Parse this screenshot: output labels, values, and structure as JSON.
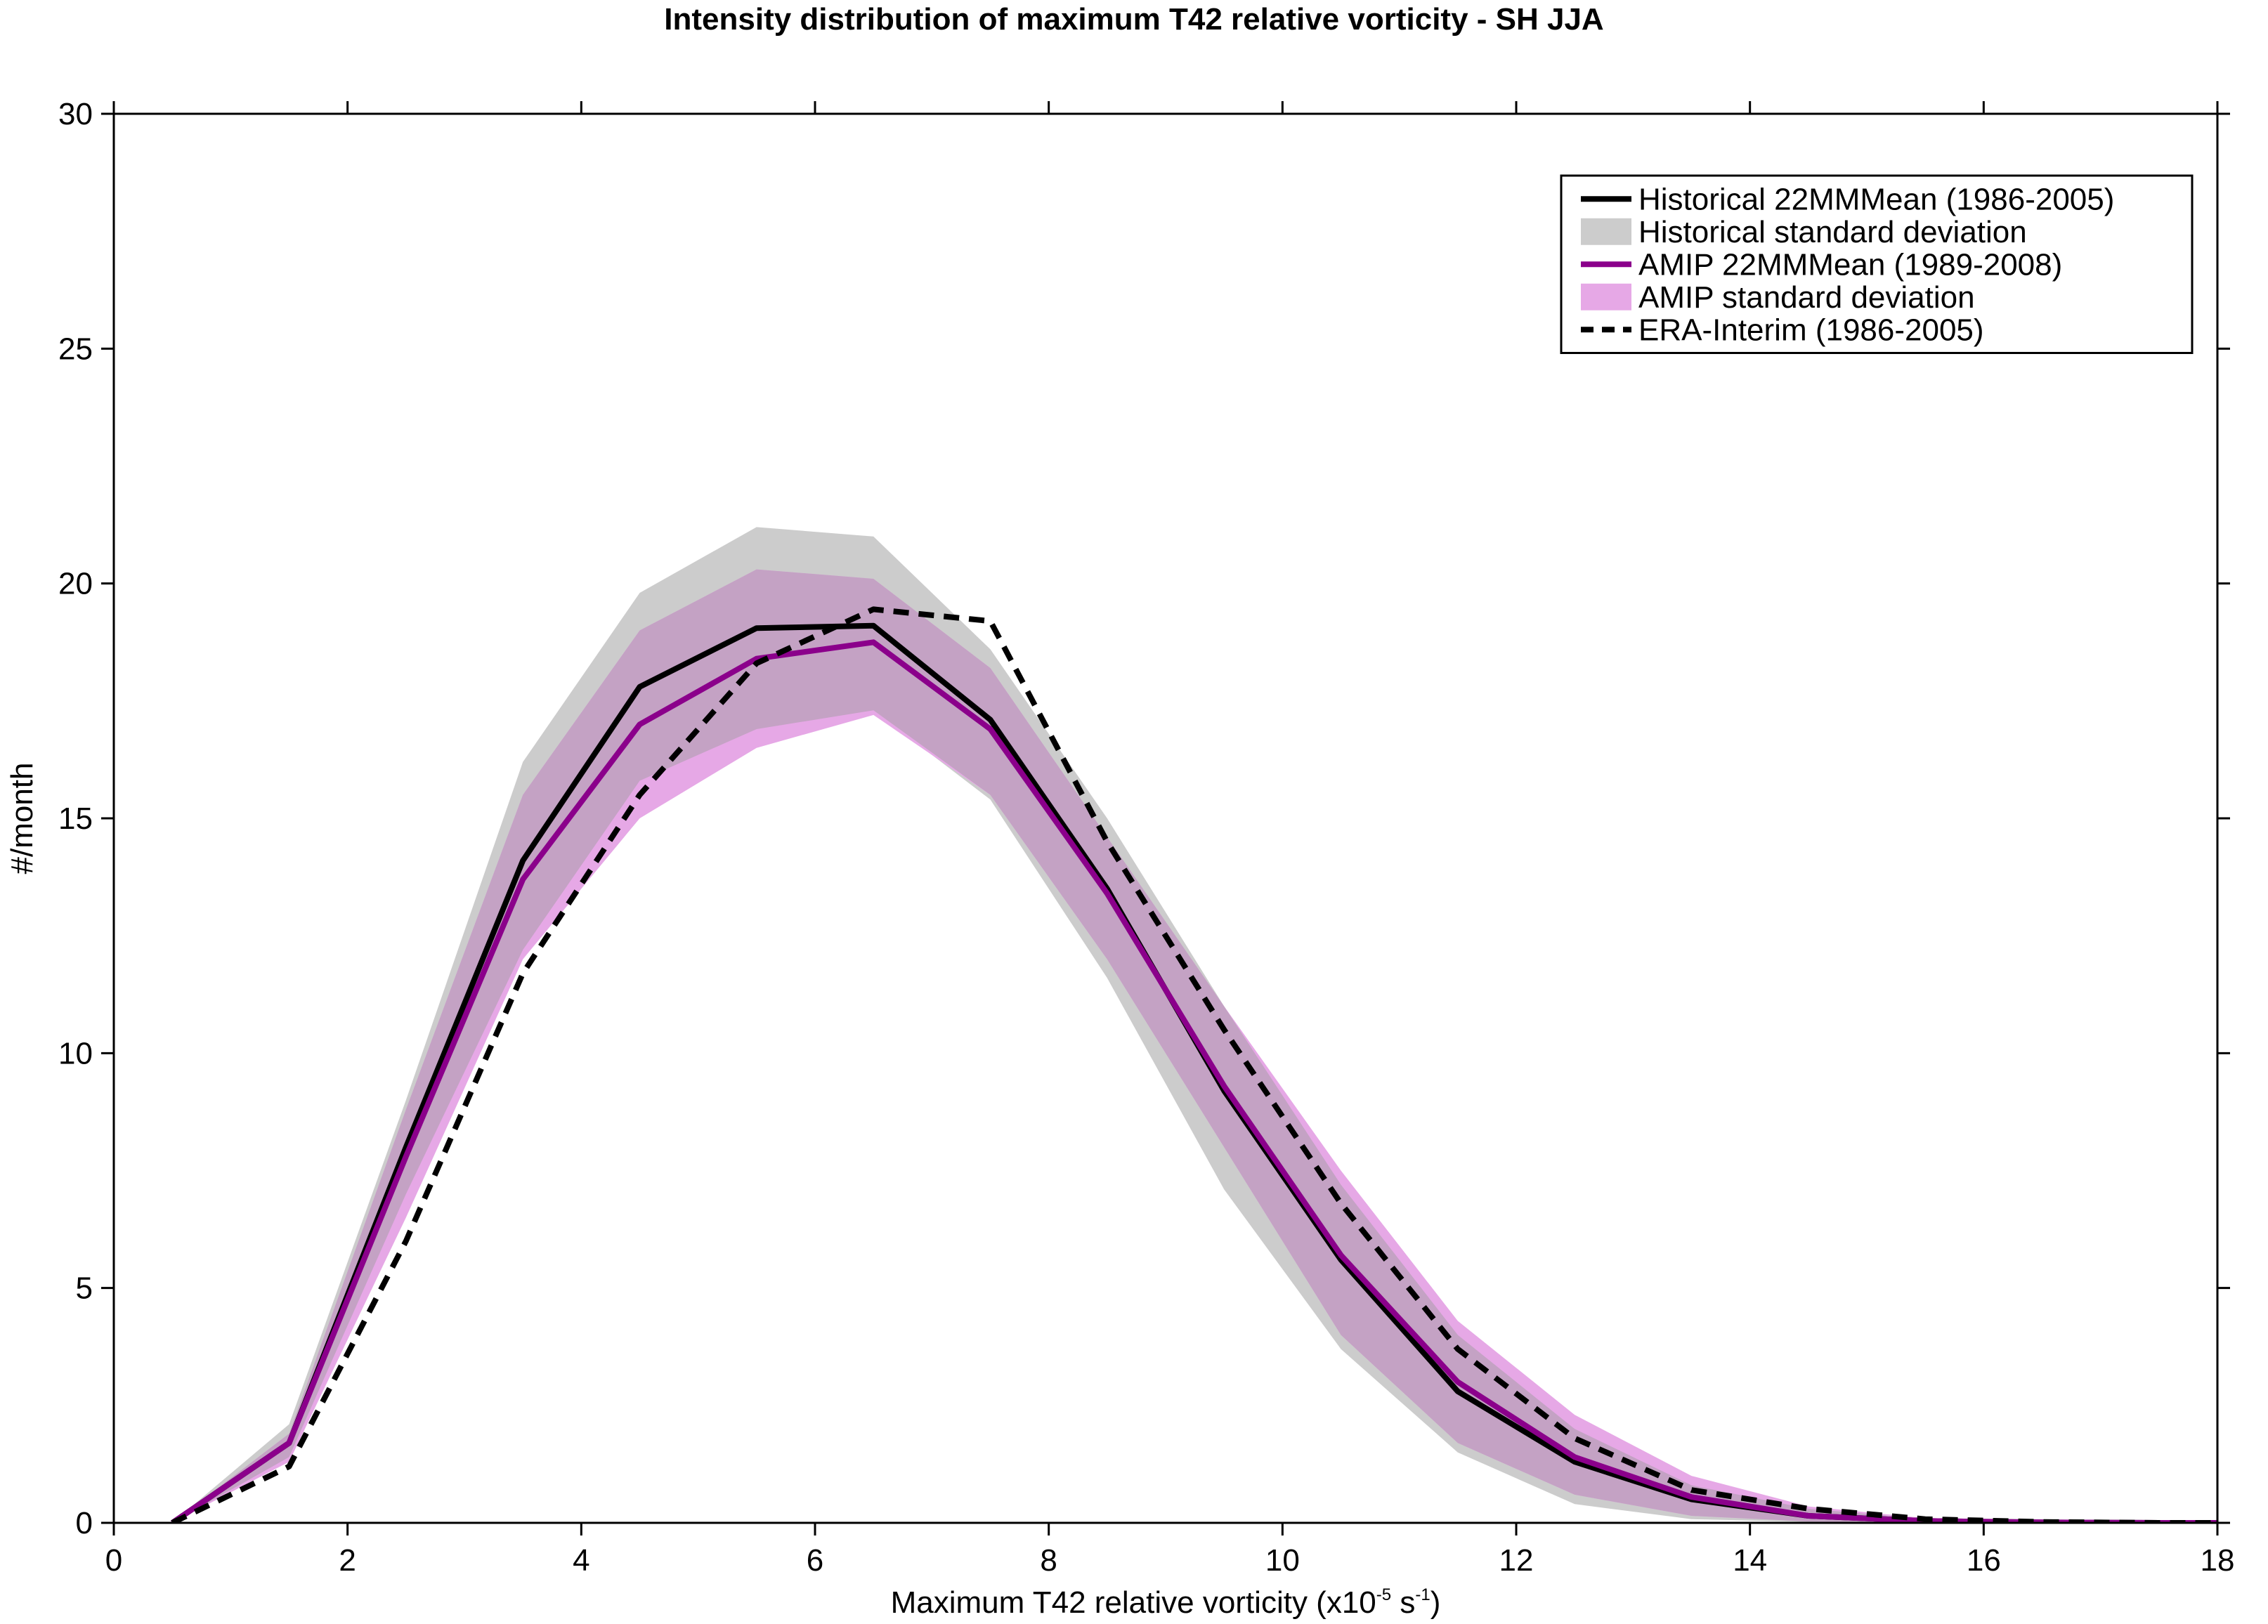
{
  "chart_data": {
    "type": "line",
    "title": "Intensity distribution of maximum T42 relative vorticity - SH JJA",
    "xlabel": {
      "prefix": "Maximum T42 relative vorticity (x10",
      "exp1": "-5",
      "middle": " s",
      "exp2": "-1",
      "suffix": ")"
    },
    "ylabel": "#/month",
    "xlim": [
      0,
      18
    ],
    "ylim": [
      0,
      30
    ],
    "xticks": [
      0,
      2,
      4,
      6,
      8,
      10,
      12,
      14,
      16,
      18
    ],
    "yticks": [
      0,
      5,
      10,
      15,
      20,
      25,
      30
    ],
    "x": [
      0.5,
      1.5,
      2.5,
      3.5,
      4.5,
      5.5,
      6.5,
      7.5,
      8.5,
      9.5,
      10.5,
      11.5,
      12.5,
      13.5,
      14.5,
      15.5,
      16.5,
      17.5,
      18
    ],
    "bands": [
      {
        "name": "Historical standard deviation",
        "color": "#cccccc",
        "lower": [
          0,
          1.4,
          7.0,
          12.2,
          15.8,
          16.9,
          17.3,
          15.4,
          11.6,
          7.1,
          3.7,
          1.5,
          0.4,
          0.08,
          0.02,
          0.0,
          0.0,
          0.0,
          0.0
        ],
        "upper": [
          0,
          2.1,
          9.0,
          16.2,
          19.8,
          21.2,
          21.0,
          18.6,
          15.0,
          11.0,
          7.2,
          4.0,
          2.0,
          0.8,
          0.3,
          0.08,
          0.03,
          0.01,
          0.01
        ]
      },
      {
        "name": "AMIP standard deviation",
        "color": "#e6a8e6",
        "lower": [
          0,
          1.3,
          6.5,
          12.0,
          15.0,
          16.5,
          17.2,
          15.5,
          12.0,
          8.0,
          4.0,
          1.7,
          0.6,
          0.15,
          0.03,
          0.01,
          0.0,
          0.0,
          0.0
        ],
        "upper": [
          0,
          1.9,
          8.8,
          15.5,
          19.0,
          20.3,
          20.1,
          18.2,
          14.6,
          11.0,
          7.5,
          4.3,
          2.3,
          1.0,
          0.35,
          0.1,
          0.03,
          0.01,
          0.01
        ]
      }
    ],
    "series": [
      {
        "name": "Historical 22MMMean (1986-2005)",
        "color": "#000000",
        "style": "solid",
        "values": [
          0,
          1.7,
          8.0,
          14.1,
          17.8,
          19.05,
          19.1,
          17.1,
          13.5,
          9.2,
          5.6,
          2.8,
          1.3,
          0.5,
          0.15,
          0.04,
          0.01,
          0.0,
          0.0
        ]
      },
      {
        "name": "AMIP 22MMMean (1989-2008)",
        "color": "#8b008b",
        "style": "solid",
        "values": [
          0,
          1.7,
          7.8,
          13.7,
          17.0,
          18.4,
          18.75,
          16.9,
          13.4,
          9.3,
          5.7,
          3.0,
          1.4,
          0.55,
          0.15,
          0.04,
          0.01,
          0.0,
          0.0
        ]
      },
      {
        "name": "ERA-Interim (1986-2005)",
        "color": "#000000",
        "style": "dashed",
        "values": [
          0,
          1.2,
          6.0,
          11.7,
          15.5,
          18.3,
          19.45,
          19.2,
          14.5,
          10.5,
          6.8,
          3.7,
          1.8,
          0.7,
          0.3,
          0.08,
          0.02,
          0.0,
          0.0
        ]
      }
    ],
    "legend": {
      "placement": "top-right",
      "entries": [
        {
          "label": "Historical 22MMMean (1986-2005)",
          "kind": "line",
          "color": "#000000",
          "style": "solid"
        },
        {
          "label": "Historical standard deviation",
          "kind": "patch",
          "color": "#cccccc"
        },
        {
          "label": "AMIP 22MMMean (1989-2008)",
          "kind": "line",
          "color": "#8b008b",
          "style": "solid"
        },
        {
          "label": "AMIP standard deviation",
          "kind": "patch",
          "color": "#e6a8e6"
        },
        {
          "label": "ERA-Interim (1986-2005)",
          "kind": "line",
          "color": "#000000",
          "style": "dashed"
        }
      ]
    },
    "grid": false,
    "overlap_color": "#c4a2c4"
  }
}
